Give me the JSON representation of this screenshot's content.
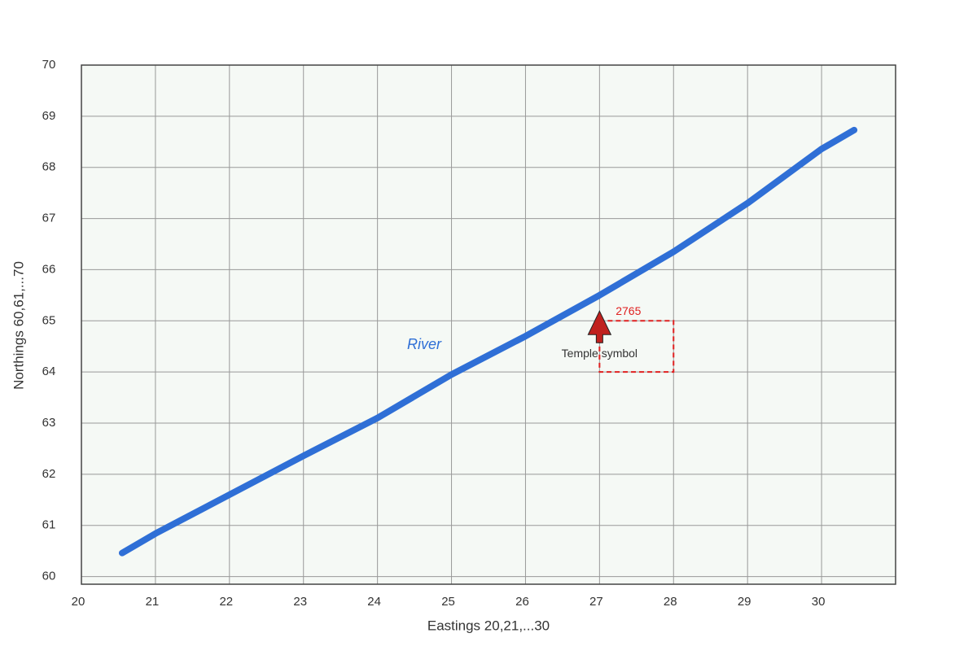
{
  "chart_data": {
    "type": "line",
    "xlabel": "Eastings 20,21,...30",
    "ylabel": "Northings 60,61,...70",
    "x": [
      20.55,
      21,
      22,
      23,
      24,
      25,
      26,
      27,
      28,
      29,
      30,
      30.44
    ],
    "series": [
      {
        "name": "River",
        "color": "#2f6fd6",
        "values": [
          60.46,
          60.84,
          61.6,
          62.36,
          63.1,
          63.95,
          64.7,
          65.5,
          66.35,
          67.3,
          68.36,
          68.73
        ]
      }
    ],
    "xlim": [
      20,
      31
    ],
    "ylim": [
      59.85,
      70
    ],
    "xticks": [
      20,
      21,
      22,
      23,
      24,
      25,
      26,
      27,
      28,
      29,
      30
    ],
    "yticks": [
      60,
      61,
      62,
      63,
      64,
      65,
      66,
      67,
      68,
      69,
      70
    ],
    "grid": true,
    "annotations": [
      {
        "text": "Temple symbol",
        "x": 27,
        "y": 65,
        "color": "#c0201e"
      }
    ],
    "grid_square": {
      "label": "2765",
      "x": [
        27,
        28
      ],
      "y": [
        64,
        65
      ],
      "color": "#e02020"
    }
  }
}
